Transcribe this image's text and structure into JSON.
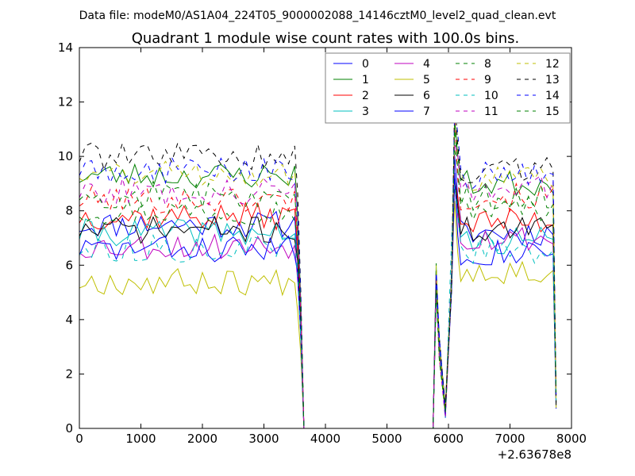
{
  "chart_data": {
    "type": "line",
    "suptitle": "Data file: modeM0/AS1A04_224T05_9000002088_14146cztM0_level2_quad_clean.evt",
    "title": "Quadrant 1 module wise count rates with 100.0s bins.",
    "xlabel": "",
    "ylabel": "",
    "x_offset_label": "+2.63678e8",
    "xlim": [
      0,
      8000
    ],
    "ylim": [
      0,
      14
    ],
    "xticks": [
      0,
      1000,
      2000,
      3000,
      4000,
      5000,
      6000,
      7000,
      8000
    ],
    "yticks": [
      0,
      2,
      4,
      6,
      8,
      10,
      12,
      14
    ],
    "legend_position": "top-right",
    "series": [
      {
        "name": "0",
        "color": "#0000ff",
        "dash": "solid",
        "level1": 7.5,
        "level2": 7.2,
        "seed": 11
      },
      {
        "name": "1",
        "color": "#008000",
        "dash": "solid",
        "level1": 9.3,
        "level2": 9.0,
        "seed": 23
      },
      {
        "name": "2",
        "color": "#ff0000",
        "dash": "solid",
        "level1": 7.8,
        "level2": 7.6,
        "seed": 37
      },
      {
        "name": "3",
        "color": "#00bfbf",
        "dash": "solid",
        "level1": 7.2,
        "level2": 6.9,
        "seed": 41
      },
      {
        "name": "4",
        "color": "#bf00bf",
        "dash": "solid",
        "level1": 6.7,
        "level2": 7.0,
        "seed": 53
      },
      {
        "name": "5",
        "color": "#bfbf00",
        "dash": "solid",
        "level1": 5.4,
        "level2": 5.8,
        "seed": 67
      },
      {
        "name": "6",
        "color": "#000000",
        "dash": "solid",
        "level1": 7.3,
        "level2": 7.3,
        "seed": 71
      },
      {
        "name": "7",
        "color": "#0000ff",
        "dash": "solid",
        "level1": 6.6,
        "level2": 6.5,
        "seed": 83
      },
      {
        "name": "8",
        "color": "#008000",
        "dash": "dashed",
        "level1": 8.0,
        "level2": 8.1,
        "seed": 97
      },
      {
        "name": "9",
        "color": "#ff0000",
        "dash": "dashed",
        "level1": 8.4,
        "level2": 8.5,
        "seed": 101
      },
      {
        "name": "10",
        "color": "#00bfbf",
        "dash": "dashed",
        "level1": 6.6,
        "level2": 6.5,
        "seed": 113
      },
      {
        "name": "11",
        "color": "#bf00bf",
        "dash": "dashed",
        "level1": 8.7,
        "level2": 8.8,
        "seed": 127
      },
      {
        "name": "12",
        "color": "#bfbf00",
        "dash": "dashed",
        "level1": 9.4,
        "level2": 9.2,
        "seed": 131
      },
      {
        "name": "13",
        "color": "#000000",
        "dash": "dashed",
        "level1": 10.0,
        "level2": 9.5,
        "seed": 139
      },
      {
        "name": "14",
        "color": "#0000ff",
        "dash": "dashed",
        "level1": 9.5,
        "level2": 9.3,
        "seed": 149
      },
      {
        "name": "15",
        "color": "#008000",
        "dash": "dashed",
        "level1": 8.6,
        "level2": 8.5,
        "seed": 157
      }
    ],
    "segments": {
      "bin_width": 100,
      "active1": [
        0,
        3500
      ],
      "fall1": [
        3500,
        3650
      ],
      "gap": [
        3650,
        5750
      ],
      "spike": [
        5750,
        5900
      ],
      "dip": 5950,
      "rise_peak": 6150,
      "active2": [
        6200,
        7600
      ],
      "end_drop": [
        7650,
        7750
      ]
    }
  }
}
